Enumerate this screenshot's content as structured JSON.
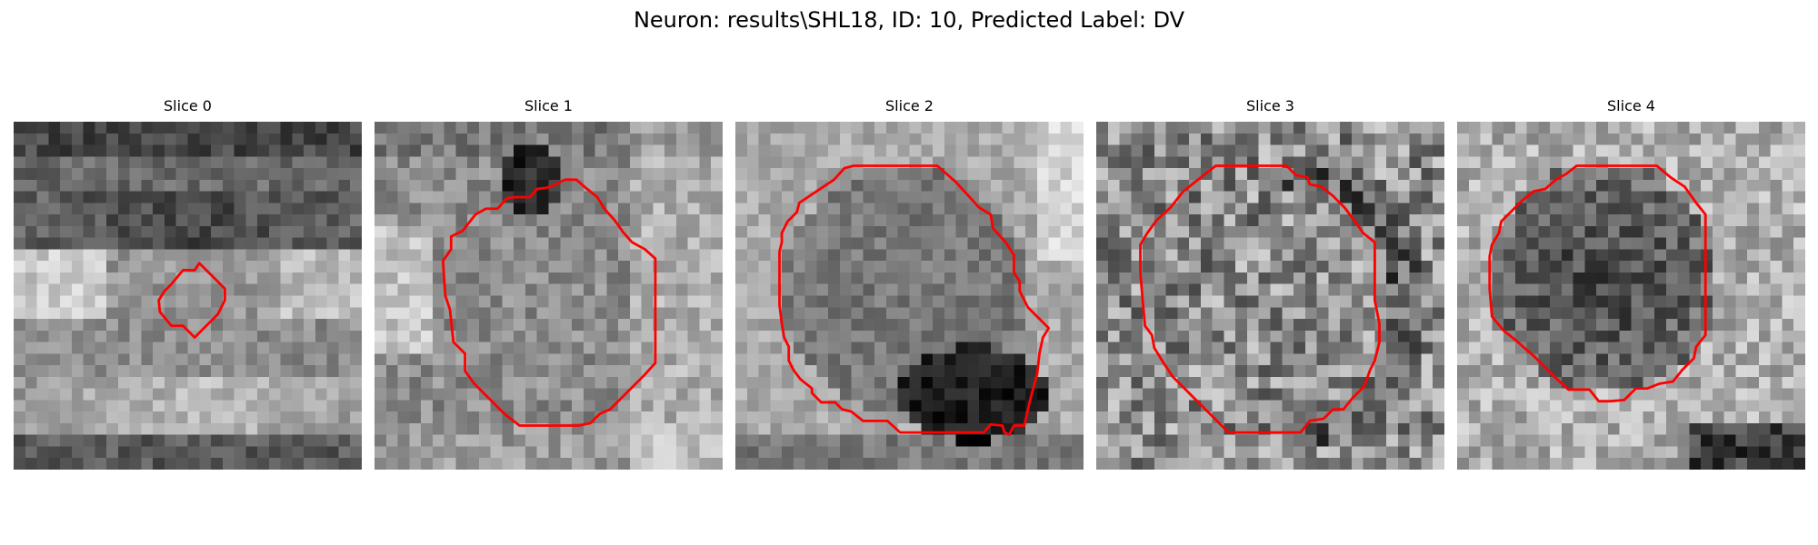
{
  "figure": {
    "title": "Neuron: results\\SHL18, ID: 10, Predicted Label: DV"
  },
  "panels": [
    {
      "label": "Slice 0",
      "seed": 11,
      "background_description": "dark top band, bright lower band, small central ROI"
    },
    {
      "label": "Slice 1",
      "seed": 23,
      "background_description": "dark blob near top, bright right side"
    },
    {
      "label": "Slice 2",
      "seed": 37,
      "background_description": "large circular region with dark lower right"
    },
    {
      "label": "Slice 3",
      "seed": 51,
      "background_description": "noisy textured field"
    },
    {
      "label": "Slice 4",
      "seed": 67,
      "background_description": "dark central cell body on lighter background"
    }
  ],
  "contour_color": "#ff0000"
}
